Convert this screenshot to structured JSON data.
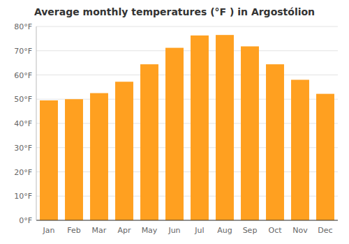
{
  "chart_data": {
    "type": "bar",
    "title": "Average monthly temperatures (°F ) in Argostólion",
    "categories": [
      "Jan",
      "Feb",
      "Mar",
      "Apr",
      "May",
      "Jun",
      "Jul",
      "Aug",
      "Sep",
      "Oct",
      "Nov",
      "Dec"
    ],
    "values": [
      49.5,
      50.0,
      52.5,
      57.2,
      64.4,
      71.2,
      76.3,
      76.5,
      71.8,
      64.4,
      58.0,
      52.2
    ],
    "color": "#FFA020",
    "ylim": [
      0,
      80
    ],
    "yticks": [
      {
        "value": 0,
        "label": "0°F"
      },
      {
        "value": 10,
        "label": "10°F"
      },
      {
        "value": 20,
        "label": "20°F"
      },
      {
        "value": 30,
        "label": "30°F"
      },
      {
        "value": 40,
        "label": "40°F"
      },
      {
        "value": 50,
        "label": "50°F"
      },
      {
        "value": 60,
        "label": "60°F"
      },
      {
        "value": 70,
        "label": "70°F"
      },
      {
        "value": 80,
        "label": "80°F"
      }
    ],
    "grid": true
  }
}
